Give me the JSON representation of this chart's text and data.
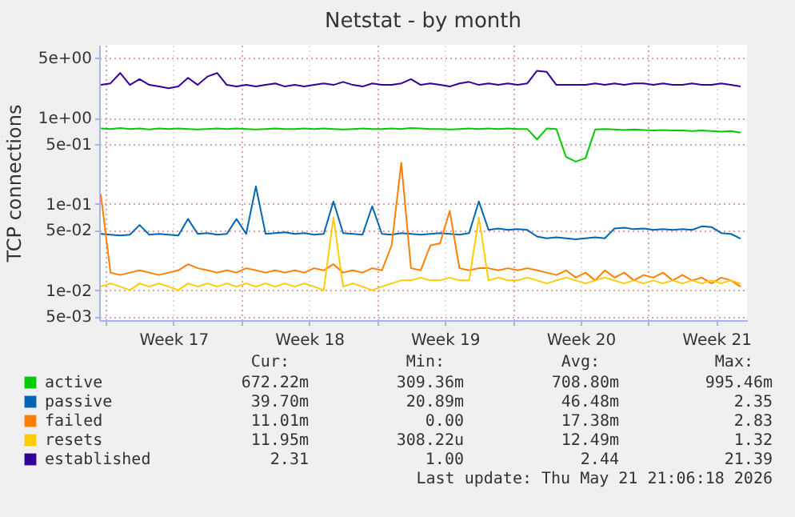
{
  "chart_data": {
    "type": "line",
    "title": "Netstat - by month",
    "ylabel": "TCP connections",
    "x": [
      "2026-04-19T18:00",
      "2026-04-20T06:00",
      "2026-04-20T18:00",
      "2026-04-21T06:00",
      "2026-04-21T18:00",
      "2026-04-22T06:00",
      "2026-04-22T18:00",
      "2026-04-23T06:00",
      "2026-04-23T18:00",
      "2026-04-24T06:00",
      "2026-04-24T18:00",
      "2026-04-25T06:00",
      "2026-04-25T18:00",
      "2026-04-26T06:00",
      "2026-04-26T18:00",
      "2026-04-27T06:00",
      "2026-04-27T18:00",
      "2026-04-28T06:00",
      "2026-04-28T18:00",
      "2026-04-29T06:00",
      "2026-04-29T18:00",
      "2026-04-30T06:00",
      "2026-04-30T18:00",
      "2026-05-01T06:00",
      "2026-05-01T18:00",
      "2026-05-02T06:00",
      "2026-05-02T18:00",
      "2026-05-03T06:00",
      "2026-05-03T18:00",
      "2026-05-04T06:00",
      "2026-05-04T18:00",
      "2026-05-05T06:00",
      "2026-05-05T18:00",
      "2026-05-06T06:00",
      "2026-05-06T18:00",
      "2026-05-07T06:00",
      "2026-05-07T18:00",
      "2026-05-08T06:00",
      "2026-05-08T18:00",
      "2026-05-09T06:00",
      "2026-05-09T18:00",
      "2026-05-10T06:00",
      "2026-05-10T18:00",
      "2026-05-11T06:00",
      "2026-05-11T18:00",
      "2026-05-12T06:00",
      "2026-05-12T18:00",
      "2026-05-13T06:00",
      "2026-05-13T18:00",
      "2026-05-14T06:00",
      "2026-05-14T18:00",
      "2026-05-15T06:00",
      "2026-05-15T18:00",
      "2026-05-16T06:00",
      "2026-05-16T18:00",
      "2026-05-17T06:00",
      "2026-05-17T18:00",
      "2026-05-18T06:00",
      "2026-05-18T18:00",
      "2026-05-19T06:00",
      "2026-05-19T18:00",
      "2026-05-20T06:00",
      "2026-05-20T18:00",
      "2026-05-21T06:00",
      "2026-05-21T18:00",
      "2026-05-22T06:00",
      "2026-05-22T18:00"
    ],
    "series": [
      {
        "name": "active",
        "color": "#00cc00",
        "values": [
          0.75,
          0.74,
          0.76,
          0.74,
          0.75,
          0.73,
          0.75,
          0.74,
          0.75,
          0.74,
          0.73,
          0.74,
          0.75,
          0.74,
          0.75,
          0.74,
          0.73,
          0.74,
          0.75,
          0.74,
          0.74,
          0.75,
          0.74,
          0.75,
          0.74,
          0.73,
          0.74,
          0.75,
          0.74,
          0.74,
          0.75,
          0.74,
          0.76,
          0.75,
          0.74,
          0.74,
          0.73,
          0.74,
          0.75,
          0.74,
          0.75,
          0.74,
          0.75,
          0.74,
          0.74,
          0.56,
          0.75,
          0.74,
          0.35,
          0.31,
          0.34,
          0.73,
          0.74,
          0.73,
          0.72,
          0.73,
          0.72,
          0.71,
          0.72,
          0.71,
          0.71,
          0.7,
          0.71,
          0.7,
          0.69,
          0.7,
          0.67
        ]
      },
      {
        "name": "passive",
        "color": "#0066b3",
        "values": [
          0.045,
          0.044,
          0.043,
          0.044,
          0.057,
          0.044,
          0.045,
          0.044,
          0.043,
          0.067,
          0.045,
          0.046,
          0.044,
          0.045,
          0.067,
          0.045,
          0.16,
          0.045,
          0.046,
          0.047,
          0.045,
          0.046,
          0.044,
          0.045,
          0.107,
          0.046,
          0.045,
          0.044,
          0.094,
          0.045,
          0.044,
          0.046,
          0.045,
          0.044,
          0.045,
          0.046,
          0.045,
          0.044,
          0.046,
          0.107,
          0.05,
          0.052,
          0.05,
          0.051,
          0.05,
          0.042,
          0.04,
          0.041,
          0.04,
          0.039,
          0.04,
          0.041,
          0.04,
          0.052,
          0.053,
          0.051,
          0.052,
          0.05,
          0.051,
          0.05,
          0.051,
          0.05,
          0.055,
          0.054,
          0.046,
          0.045,
          0.0397
        ]
      },
      {
        "name": "failed",
        "color": "#ff8000",
        "values": [
          0.13,
          0.016,
          0.015,
          0.016,
          0.017,
          0.016,
          0.015,
          0.016,
          0.017,
          0.02,
          0.018,
          0.017,
          0.016,
          0.017,
          0.016,
          0.018,
          0.017,
          0.016,
          0.017,
          0.016,
          0.017,
          0.016,
          0.018,
          0.017,
          0.02,
          0.016,
          0.017,
          0.016,
          0.018,
          0.017,
          0.033,
          0.3,
          0.018,
          0.017,
          0.033,
          0.035,
          0.083,
          0.018,
          0.017,
          0.018,
          0.018,
          0.017,
          0.018,
          0.017,
          0.018,
          0.017,
          0.016,
          0.015,
          0.017,
          0.014,
          0.016,
          0.013,
          0.017,
          0.014,
          0.016,
          0.013,
          0.015,
          0.014,
          0.016,
          0.013,
          0.015,
          0.013,
          0.014,
          0.012,
          0.014,
          0.013,
          0.011
        ]
      },
      {
        "name": "resets",
        "color": "#ffcc00",
        "values": [
          0.011,
          0.012,
          0.011,
          0.01,
          0.012,
          0.011,
          0.012,
          0.011,
          0.01,
          0.012,
          0.011,
          0.012,
          0.011,
          0.012,
          0.011,
          0.012,
          0.011,
          0.012,
          0.011,
          0.012,
          0.011,
          0.012,
          0.011,
          0.01,
          0.07,
          0.011,
          0.012,
          0.011,
          0.01,
          0.011,
          0.012,
          0.013,
          0.013,
          0.014,
          0.013,
          0.013,
          0.014,
          0.013,
          0.013,
          0.07,
          0.013,
          0.014,
          0.013,
          0.013,
          0.014,
          0.013,
          0.012,
          0.013,
          0.014,
          0.013,
          0.012,
          0.013,
          0.014,
          0.013,
          0.012,
          0.013,
          0.012,
          0.013,
          0.012,
          0.013,
          0.012,
          0.013,
          0.012,
          0.013,
          0.012,
          0.013,
          0.0119
        ]
      },
      {
        "name": "established",
        "color": "#330099",
        "values": [
          2.4,
          2.5,
          3.3,
          2.4,
          2.8,
          2.4,
          2.3,
          2.2,
          2.3,
          2.9,
          2.4,
          3.0,
          3.3,
          2.4,
          2.3,
          2.4,
          2.3,
          2.4,
          2.5,
          2.3,
          2.4,
          2.3,
          2.4,
          2.5,
          2.4,
          2.6,
          2.4,
          2.3,
          2.5,
          2.4,
          2.4,
          2.5,
          2.8,
          2.4,
          2.5,
          2.4,
          2.3,
          2.5,
          2.6,
          2.4,
          2.5,
          2.4,
          2.5,
          2.4,
          2.5,
          3.5,
          3.4,
          2.4,
          2.4,
          2.4,
          2.4,
          2.5,
          2.4,
          2.5,
          2.4,
          2.5,
          2.5,
          2.4,
          2.5,
          2.4,
          2.4,
          2.5,
          2.4,
          2.4,
          2.5,
          2.4,
          2.31
        ]
      }
    ],
    "log": "y",
    "xlim": [
      "2026-04-19T16:00",
      "2026-05-23T02:00"
    ],
    "xticks": [
      {
        "value": "2026-04-20",
        "label": null
      },
      {
        "value": "2026-04-23T12:00",
        "label": "Week 17"
      },
      {
        "value": "2026-04-27",
        "label": null
      },
      {
        "value": "2026-04-30T12:00",
        "label": "Week 18"
      },
      {
        "value": "2026-05-04",
        "label": null
      },
      {
        "value": "2026-05-07T12:00",
        "label": "Week 19"
      },
      {
        "value": "2026-05-11",
        "label": null
      },
      {
        "value": "2026-05-14T12:00",
        "label": "Week 20"
      },
      {
        "value": "2026-05-18",
        "label": null
      },
      {
        "value": "2026-05-21T12:00",
        "label": "Week 21"
      }
    ],
    "ylim": [
      0.0045,
      7
    ],
    "yticks": [
      {
        "value": 0.005,
        "label": "5e-03"
      },
      {
        "value": 0.01,
        "label": "1e-02"
      },
      {
        "value": 0.05,
        "label": "5e-02"
      },
      {
        "value": 0.1,
        "label": "1e-01"
      },
      {
        "value": 0.5,
        "label": "5e-01"
      },
      {
        "value": 1,
        "label": "1e+00"
      },
      {
        "value": 5,
        "label": "5e+00"
      }
    ],
    "grid": true,
    "legend": "bottom left",
    "annotations": [
      "Cur:",
      "Min:",
      "Avg:",
      "Max:",
      "672.22m",
      "309.36m",
      "708.80m",
      "995.46m",
      "39.70m",
      "20.89m",
      "46.48m",
      "2.35",
      "11.01m",
      "0.00",
      "17.38m",
      "2.83",
      "11.95m",
      "308.22u",
      "12.49m",
      "1.32",
      "2.31",
      "1.00",
      "2.44",
      "21.39",
      "Last update: Thu May 21 21:06:18 2026"
    ]
  }
}
